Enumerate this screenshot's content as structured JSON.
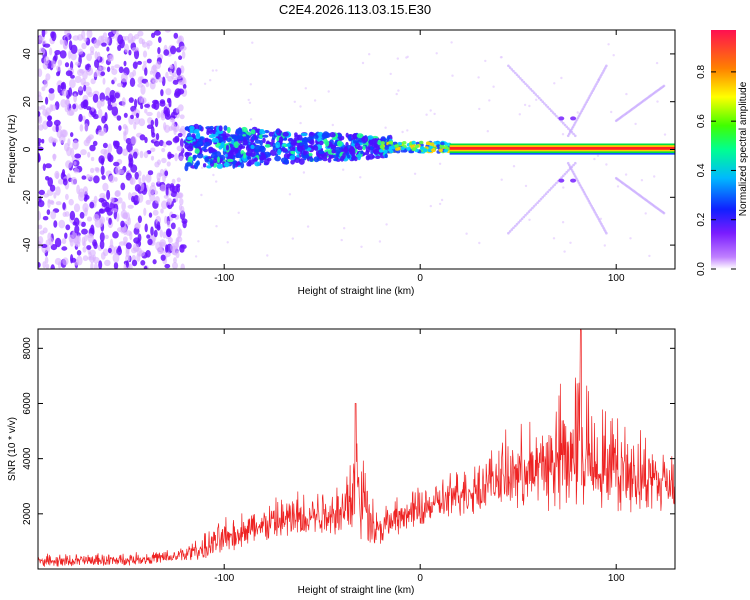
{
  "title": "C2E4.2026.113.03.15.E30",
  "colors": {
    "snr_line": "#ee2222",
    "carrier": "#ff2020",
    "noise": "#7a1cff",
    "colorbar_stops": [
      "#ff00ff",
      "#6a00ff",
      "#0000ff",
      "#00b0ff",
      "#00ff80",
      "#60ff00",
      "#ffff00",
      "#ff8000",
      "#ff1040"
    ]
  },
  "chart_data": [
    {
      "type": "heatmap",
      "name": "spectrogram",
      "xlabel": "Height of straight line (km)",
      "ylabel": "Frequency (Hz)",
      "xlim": [
        -195,
        130
      ],
      "ylim": [
        -50,
        50
      ],
      "xticks": [
        -100,
        0,
        100
      ],
      "yticks": [
        -40,
        -20,
        0,
        20,
        40
      ],
      "colorbar": {
        "label": "Normalized spectral amplitude",
        "range": [
          0,
          0.97
        ],
        "ticks": [
          0.0,
          0.2,
          0.4,
          0.6,
          0.8
        ]
      }
    },
    {
      "type": "line",
      "name": "snr",
      "xlabel": "Height of straight line (km)",
      "ylabel": "SNR (10 * v/v)",
      "xlim": [
        -195,
        130
      ],
      "ylim": [
        0,
        8700
      ],
      "xticks": [
        -100,
        0,
        100
      ],
      "yticks": [
        2000,
        4000,
        6000,
        8000
      ],
      "series": [
        {
          "name": "SNR",
          "x": [
            -195,
            -150,
            -125,
            -110,
            -100,
            -80,
            -60,
            -40,
            -33,
            -30,
            -22,
            -18,
            -10,
            0,
            10,
            20,
            40,
            60,
            70,
            82,
            90,
            100,
            110,
            120,
            130
          ],
          "base": [
            150,
            200,
            300,
            500,
            800,
            1200,
            1400,
            1600,
            2000,
            1600,
            1100,
            1200,
            1500,
            1800,
            2000,
            2200,
            2600,
            2700,
            2800,
            2900,
            2800,
            2700,
            2600,
            2500,
            2500
          ],
          "peak": [
            600,
            650,
            800,
            1400,
            2000,
            2600,
            3200,
            3500,
            6000,
            5200,
            2300,
            2600,
            2800,
            3200,
            3500,
            4000,
            5000,
            6000,
            7000,
            8700,
            6500,
            6200,
            5600,
            5200,
            4800
          ]
        }
      ]
    }
  ]
}
